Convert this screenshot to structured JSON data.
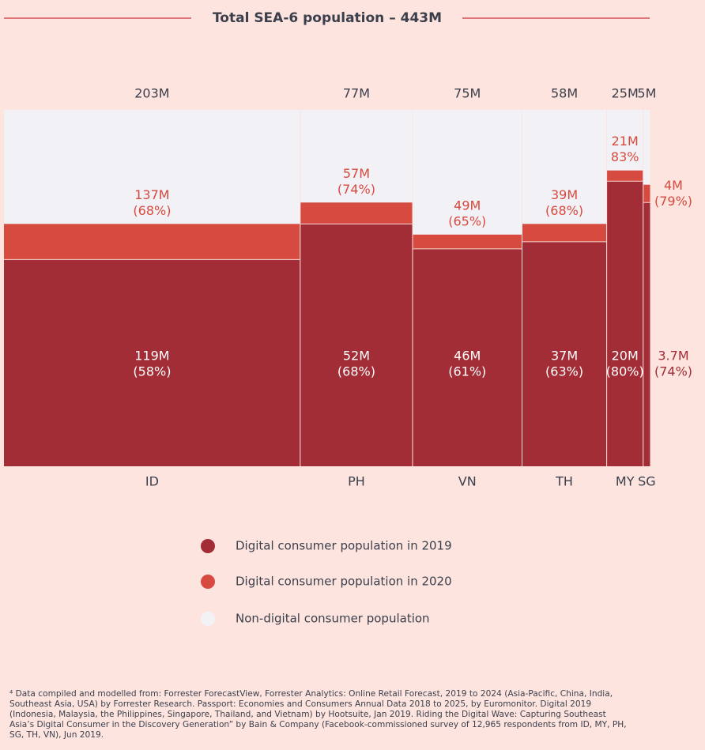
{
  "chart_data": {
    "type": "mekko",
    "title": "Total SEA-6 population – 443M",
    "categories": [
      "ID",
      "PH",
      "VN",
      "TH",
      "MY",
      "SG"
    ],
    "totals": [
      203,
      77,
      75,
      58,
      25,
      5
    ],
    "total_labels": [
      "203M",
      "77M",
      "75M",
      "58M",
      "25M",
      "5M"
    ],
    "series": [
      {
        "name": "Digital consumer population in 2019",
        "color": "#a32d36",
        "values": [
          119,
          52,
          46,
          37,
          20,
          3.7
        ],
        "value_labels": [
          "119M",
          "52M",
          "46M",
          "37M",
          "20M",
          "3.7M"
        ],
        "shares": [
          58,
          68,
          61,
          63,
          80,
          74
        ],
        "share_labels": [
          "(58%)",
          "(68%)",
          "(61%)",
          "(63%)",
          "(80%)",
          "(74%)"
        ]
      },
      {
        "name": "Digital consumer population in 2020",
        "color": "#d64a3f",
        "values": [
          137,
          57,
          49,
          39,
          21,
          4
        ],
        "value_labels": [
          "137M",
          "57M",
          "49M",
          "39M",
          "21M",
          "4M"
        ],
        "shares": [
          68,
          74,
          65,
          68,
          83,
          79
        ],
        "share_labels": [
          "(68%)",
          "(74%)",
          "(65%)",
          "(68%)",
          "83%",
          "(79%)"
        ]
      },
      {
        "name": "Non-digital consumer population",
        "color": "#f2f1f6"
      }
    ],
    "ylim": [
      0,
      100
    ],
    "footnote": [
      "⁴ Data compiled and modelled from: Forrester ForecastView, Forrester Analytics: Online Retail Forecast, 2019 to 2024 (Asia-Pacific, China, India,",
      "Southeast Asia, USA) by Forrester Research. Passport: Economies and Consumers Annual Data 2018 to 2025, by Euromonitor. Digital 2019",
      "(Indonesia, Malaysia, the Philippines, Singapore, Thailand, and Vietnam) by Hootsuite, Jan 2019. Riding the Digital Wave: Capturing Southeast",
      "Asia’s Digital Consumer in the Discovery Generation” by Bain & Company (Facebook-commissioned survey of 12,965 respondents from ID, MY, PH,",
      "SG, TH, VN), Jun 2019."
    ]
  }
}
